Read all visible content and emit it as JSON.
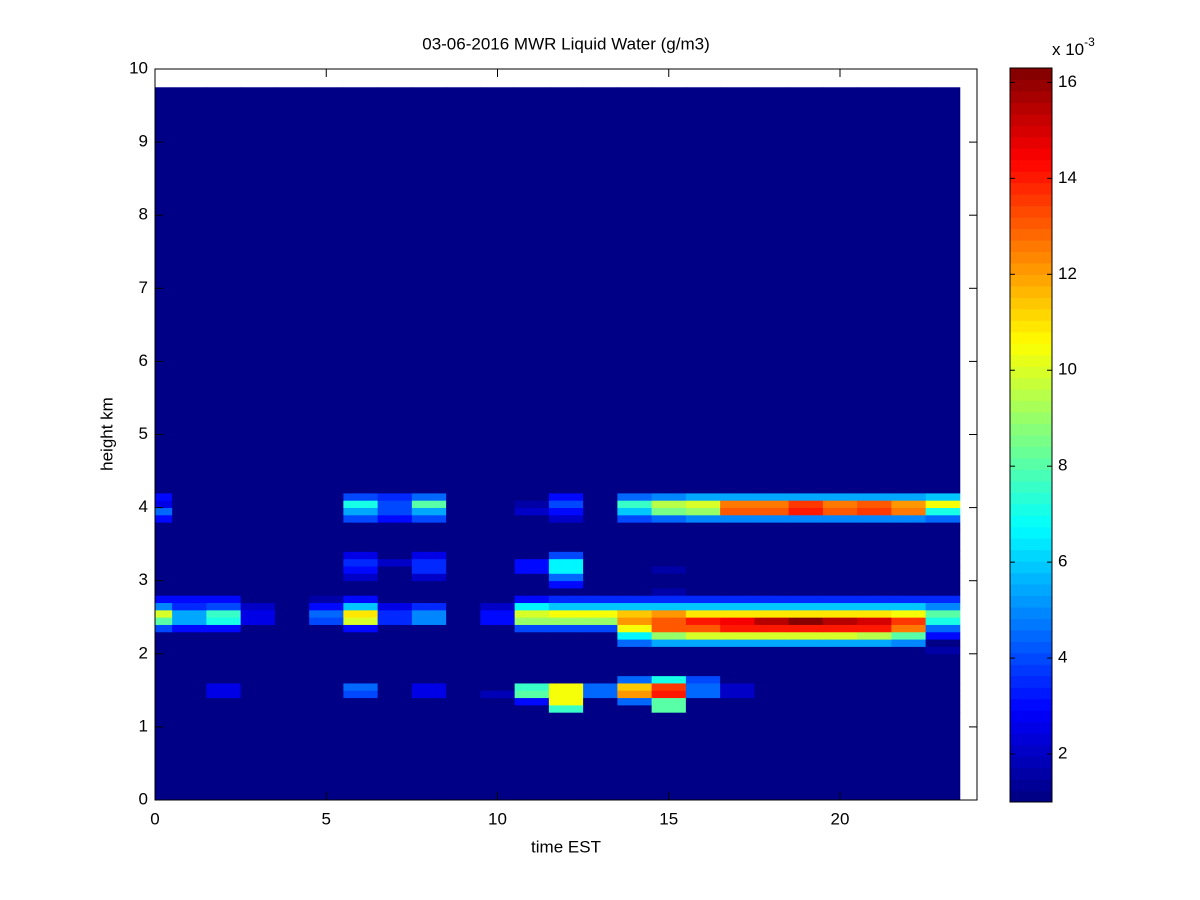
{
  "chart_data": {
    "type": "heatmap",
    "title": "03-06-2016 MWR Liquid Water (g/m3)",
    "xlabel": "time EST",
    "ylabel": "height km",
    "xlim": [
      0,
      24
    ],
    "ylim": [
      0,
      10
    ],
    "xticks": [
      0,
      5,
      10,
      15,
      20
    ],
    "yticks": [
      0,
      1,
      2,
      3,
      4,
      5,
      6,
      7,
      8,
      9,
      10
    ],
    "xbins": [
      0,
      0.5,
      1.5,
      2.5,
      3.5,
      4.5,
      5.5,
      6.5,
      7.5,
      8.5,
      9.5,
      10.5,
      11.5,
      12.5,
      13.5,
      14.5,
      15.5,
      16.5,
      17.5,
      18.5,
      19.5,
      20.5,
      21.5,
      22.5,
      23.5
    ],
    "ybins": [
      0,
      1.2,
      1.3,
      1.4,
      1.5,
      1.6,
      1.7,
      2.0,
      2.1,
      2.2,
      2.3,
      2.4,
      2.5,
      2.6,
      2.7,
      2.8,
      2.9,
      3.0,
      3.1,
      3.2,
      3.3,
      3.4,
      3.7,
      3.8,
      3.9,
      4.0,
      4.1,
      4.2,
      9.75
    ],
    "colormap": "jet",
    "clim": [
      1,
      16.3
    ],
    "cticks": [
      2,
      4,
      6,
      8,
      10,
      12,
      14,
      16
    ],
    "colorbar_label": "x 10",
    "colorbar_exponent": "-3",
    "z": [
      [
        1,
        1,
        1,
        1,
        1,
        1,
        1,
        1,
        1,
        1,
        1,
        1,
        1,
        1,
        1,
        1,
        1,
        1,
        1,
        1,
        1,
        1,
        1,
        1
      ],
      [
        1,
        1,
        1,
        1,
        1,
        1,
        1,
        1,
        1,
        1,
        1,
        1,
        7.5,
        1,
        1,
        8,
        1,
        1,
        1,
        1,
        1,
        1,
        1,
        1
      ],
      [
        1,
        1,
        1,
        1,
        1,
        1,
        1,
        1,
        1,
        1,
        1,
        3,
        10.5,
        1,
        4.5,
        8,
        1,
        1,
        1,
        1,
        1,
        1,
        1,
        1
      ],
      [
        1,
        1,
        2.5,
        1,
        1,
        1,
        4,
        1,
        2.5,
        1,
        1.8,
        8,
        10.5,
        4.5,
        12,
        14,
        4.5,
        2,
        1,
        1,
        1,
        1,
        1,
        1
      ],
      [
        1,
        1,
        2.5,
        1,
        1,
        1,
        4.5,
        1,
        2.5,
        1,
        1,
        7.5,
        10.5,
        4.5,
        11.5,
        13.5,
        4.5,
        2,
        1,
        1,
        1,
        1,
        1,
        1
      ],
      [
        1,
        1,
        1,
        1,
        1,
        1,
        1,
        1,
        1,
        1,
        1,
        1,
        1,
        1,
        4.5,
        7,
        4,
        1,
        1,
        1,
        1,
        1,
        1,
        1
      ],
      [
        1,
        1,
        1,
        1,
        1,
        1,
        1,
        1,
        1,
        1,
        1,
        1,
        1,
        1,
        1,
        1,
        1,
        1,
        1,
        1,
        1,
        1,
        1,
        1
      ],
      [
        1,
        1,
        1,
        1,
        1,
        1,
        1,
        1,
        1,
        1,
        1,
        1,
        1,
        1,
        1,
        1,
        1,
        1,
        1,
        1,
        1,
        1,
        1,
        1.5
      ],
      [
        1,
        1,
        1,
        1,
        1,
        1,
        1,
        1,
        1,
        1,
        1,
        1,
        1,
        1,
        4.5,
        5.5,
        5.5,
        5.5,
        5.5,
        5.5,
        5.5,
        5.5,
        5,
        1
      ],
      [
        1,
        1,
        1,
        1,
        1,
        1,
        1,
        1,
        1,
        1,
        1,
        1,
        1,
        1,
        6.5,
        9,
        10,
        10,
        10,
        10,
        10,
        9.5,
        8,
        3
      ],
      [
        4,
        3,
        3,
        1,
        1,
        1,
        3,
        1,
        1,
        1,
        1,
        4,
        4,
        4,
        10.5,
        13,
        13,
        14,
        14,
        14,
        14,
        14,
        12.5,
        4.5
      ],
      [
        8,
        5.5,
        7,
        2.5,
        1,
        4,
        10,
        3.5,
        5,
        1,
        3,
        9,
        9,
        9,
        12,
        13,
        14,
        14.5,
        15.5,
        16.3,
        15.5,
        15,
        13.5,
        7
      ],
      [
        10,
        5.5,
        7.5,
        2.5,
        1,
        4.5,
        11,
        3.5,
        5,
        1,
        3,
        10,
        10.5,
        10.5,
        11.5,
        12,
        11,
        11,
        11,
        11,
        11,
        11,
        10.5,
        8
      ],
      [
        5,
        3.5,
        4,
        2,
        1,
        3,
        6,
        2.5,
        3.5,
        1,
        2,
        6.5,
        6,
        6,
        6,
        6,
        6,
        6,
        6,
        6,
        6,
        6,
        6,
        5
      ],
      [
        3,
        3,
        3,
        1,
        1,
        1.5,
        3,
        1,
        1,
        1,
        1,
        3,
        3.5,
        3.5,
        3.5,
        3.5,
        3.5,
        3.5,
        3.5,
        3.5,
        3.5,
        3.5,
        3.5,
        3.5
      ],
      [
        1,
        1,
        1,
        1,
        1,
        1,
        1,
        1,
        1,
        1,
        1,
        1,
        1,
        1,
        1,
        1.5,
        1,
        1,
        1,
        1,
        1,
        1,
        1,
        1
      ],
      [
        1,
        1,
        1,
        1,
        1,
        1,
        1,
        1,
        1,
        1,
        1,
        1,
        3,
        1,
        1,
        1,
        1,
        1,
        1,
        1,
        1,
        1,
        1,
        1
      ],
      [
        1,
        1,
        1,
        1,
        1,
        1,
        2,
        1,
        2,
        1,
        1,
        1,
        4.5,
        1,
        1,
        1,
        1,
        1,
        1,
        1,
        1,
        1,
        1,
        1
      ],
      [
        1,
        1,
        1,
        1,
        1,
        1,
        3,
        1,
        3.5,
        1,
        1,
        3,
        6.5,
        1,
        1,
        1.5,
        1,
        1,
        1,
        1,
        1,
        1,
        1,
        1
      ],
      [
        1,
        1,
        1,
        1,
        1,
        1,
        3.5,
        2,
        3.5,
        1,
        1,
        3,
        6.5,
        1,
        1,
        1,
        1,
        1,
        1,
        1,
        1,
        1,
        1,
        1
      ],
      [
        1,
        1,
        1,
        1,
        1,
        1,
        2.5,
        1,
        2.5,
        1,
        1,
        1,
        4,
        1,
        1,
        1,
        1,
        1,
        1,
        1,
        1,
        1,
        1,
        1
      ],
      [
        1,
        1,
        1,
        1,
        1,
        1,
        1,
        1,
        1,
        1,
        1,
        1,
        1,
        1,
        1,
        1,
        1,
        1,
        1,
        1,
        1,
        1,
        1,
        1
      ],
      [
        1,
        1,
        1,
        1,
        1,
        1,
        1,
        1,
        1,
        1,
        1,
        1,
        1,
        1,
        1,
        1,
        1,
        1,
        1,
        1,
        1,
        1,
        1,
        1
      ],
      [
        3,
        1,
        1,
        1,
        1,
        1,
        4,
        3,
        4,
        1,
        1,
        1,
        2,
        1,
        4,
        4.5,
        5,
        5,
        5,
        5,
        5,
        5,
        5,
        4.5
      ],
      [
        4.5,
        1,
        1,
        1,
        1,
        1,
        5.5,
        4,
        5.5,
        1,
        1,
        2,
        3,
        1,
        6,
        8.5,
        9,
        13,
        13,
        14,
        13,
        13.5,
        12.5,
        7
      ],
      [
        2.5,
        1,
        1,
        1,
        1,
        1,
        7,
        4,
        8,
        1,
        1,
        1.5,
        4,
        1,
        7.5,
        9.5,
        10,
        12.5,
        12.5,
        13.5,
        12.5,
        13,
        12,
        10.5
      ],
      [
        3,
        1,
        1,
        1,
        1,
        1,
        4,
        3.5,
        4.5,
        1,
        1,
        1,
        3,
        1,
        4.5,
        5,
        5.5,
        5.5,
        5.5,
        5.5,
        5.5,
        5.5,
        5.5,
        6
      ],
      [
        1,
        1,
        1,
        1,
        1,
        1,
        1,
        1,
        1,
        1,
        1,
        1,
        1,
        1,
        1,
        1,
        1,
        1,
        1,
        1,
        1,
        1,
        1,
        1
      ]
    ]
  }
}
